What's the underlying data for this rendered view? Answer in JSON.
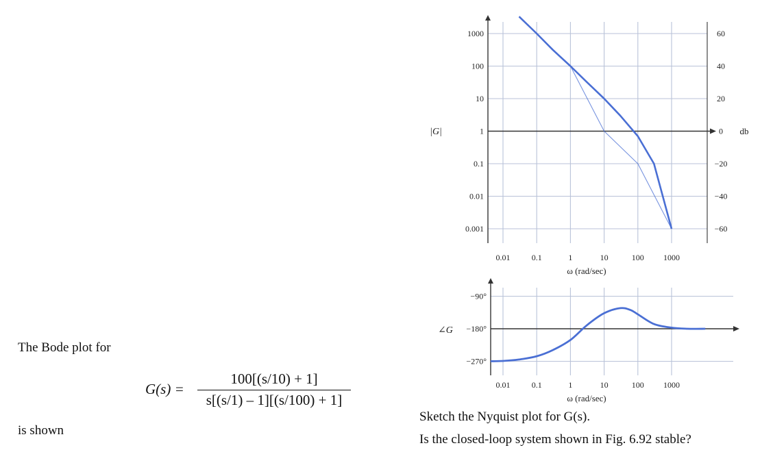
{
  "problem": {
    "intro": "The Bode plot for",
    "formula_lhs": "G(s) =",
    "formula_numerator": "100[(s/10) + 1]",
    "formula_denominator": "s[(s/1) – 1][(s/100) + 1]",
    "outro": "is shown",
    "question_1": "Sketch the Nyquist plot for G(s).",
    "question_2": "Is the closed-loop system shown in Fig. 6.92 stable?"
  },
  "chart_data": [
    {
      "type": "line",
      "title": "",
      "xscale": "log",
      "yscale": "log",
      "xlabel": "ω (rad/sec)",
      "ylabel": "|G|",
      "ylabel_right": "db",
      "xlim": [
        0.001,
        10000
      ],
      "ylim": [
        0.001,
        1000
      ],
      "grid": true,
      "x_ticks": [
        "0.01",
        "0.1",
        "1",
        "10",
        "100",
        "1000"
      ],
      "y_ticks_left": [
        "1000",
        "100",
        "10",
        "1",
        "0.1",
        "0.01",
        "0.001"
      ],
      "y_ticks_right": [
        "60",
        "40",
        "20",
        "0",
        "−20",
        "−40",
        "−60"
      ],
      "series": [
        {
          "role": "exact magnitude",
          "x": [
            0.03,
            0.1,
            0.3,
            1,
            3,
            10,
            30,
            100,
            300,
            1000
          ],
          "y": [
            3333,
            1000,
            316,
            100,
            33,
            10,
            3,
            0.7,
            0.1,
            0.001
          ]
        },
        {
          "role": "asymptotes",
          "x": [
            0.1,
            1,
            10,
            100,
            1000
          ],
          "y": [
            1000,
            100,
            1,
            0.1,
            0.001
          ]
        }
      ]
    },
    {
      "type": "line",
      "title": "",
      "xscale": "log",
      "xlabel": "ω (rad/sec)",
      "ylabel": "∠G",
      "xlim": [
        0.001,
        10000
      ],
      "ylim": [
        -300,
        -60
      ],
      "grid": true,
      "x_ticks": [
        "0.01",
        "0.1",
        "1",
        "10",
        "100",
        "1000"
      ],
      "y_ticks": [
        "−90°",
        "−180°",
        "−270°"
      ],
      "series": [
        {
          "role": "phase",
          "x": [
            0.001,
            0.003,
            0.01,
            0.03,
            0.1,
            0.3,
            1,
            3,
            10,
            30,
            60,
            100,
            300,
            1000,
            3000,
            10000
          ],
          "y": [
            -270,
            -270,
            -269,
            -265,
            -256,
            -239,
            -211,
            -171,
            -137,
            -123,
            -128,
            -140,
            -167,
            -177,
            -180,
            -180
          ]
        }
      ]
    }
  ],
  "colors": {
    "curve": "#4a6fd4",
    "grid": "#b9c2d8",
    "axis": "#333333"
  }
}
